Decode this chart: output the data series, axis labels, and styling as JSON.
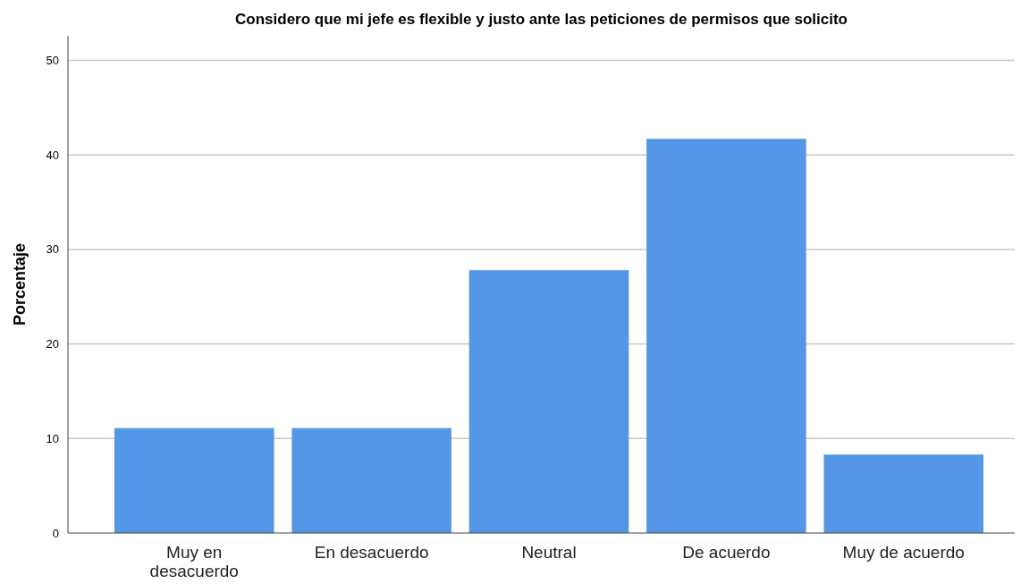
{
  "chart_data": {
    "type": "bar",
    "title": "Considero que mi jefe es flexible y justo ante las peticiones de permisos que solicito",
    "ylabel": "Porcentaje",
    "categories": [
      "Muy en desacuerdo",
      "En desacuerdo",
      "Neutral",
      "De acuerdo",
      "Muy de acuerdo"
    ],
    "values": [
      11.1,
      11.1,
      27.8,
      41.7,
      8.3
    ],
    "color": "#5596e6",
    "ylim": [
      0,
      52.6
    ],
    "yticks": [
      0,
      10,
      20,
      30,
      40,
      50
    ],
    "grid": "y"
  }
}
